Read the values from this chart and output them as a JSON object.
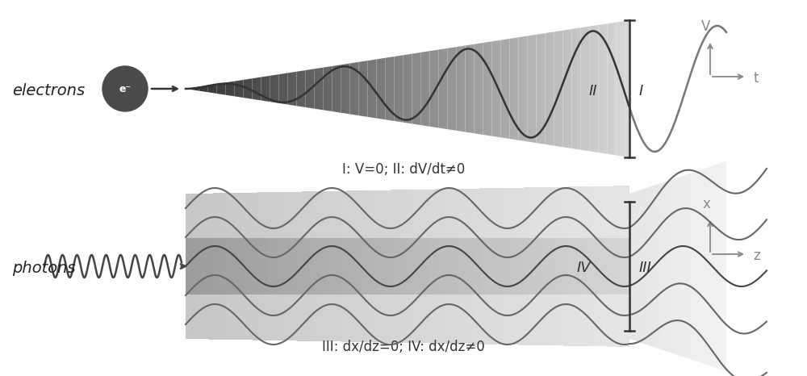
{
  "bg_color": "#ffffff",
  "top_label": "electrons",
  "bottom_label": "photons",
  "top_caption": "I: V=0; II: dV/dt≠0",
  "bottom_caption": "III: dx/dz=0; IV: dx/dz≠0",
  "electron_circle_color": "#4a4a4a",
  "wave_color_dark": "#555555",
  "wave_color_light": "#888888",
  "axis_color": "#888888",
  "label_color": "#333333",
  "cone_dark": 0.2,
  "cone_light": 0.85,
  "label_I": "I",
  "label_II": "II",
  "label_III": "III",
  "label_IV": "IV",
  "axis_V": "V",
  "axis_t": "t",
  "axis_x": "x",
  "axis_z": "z"
}
